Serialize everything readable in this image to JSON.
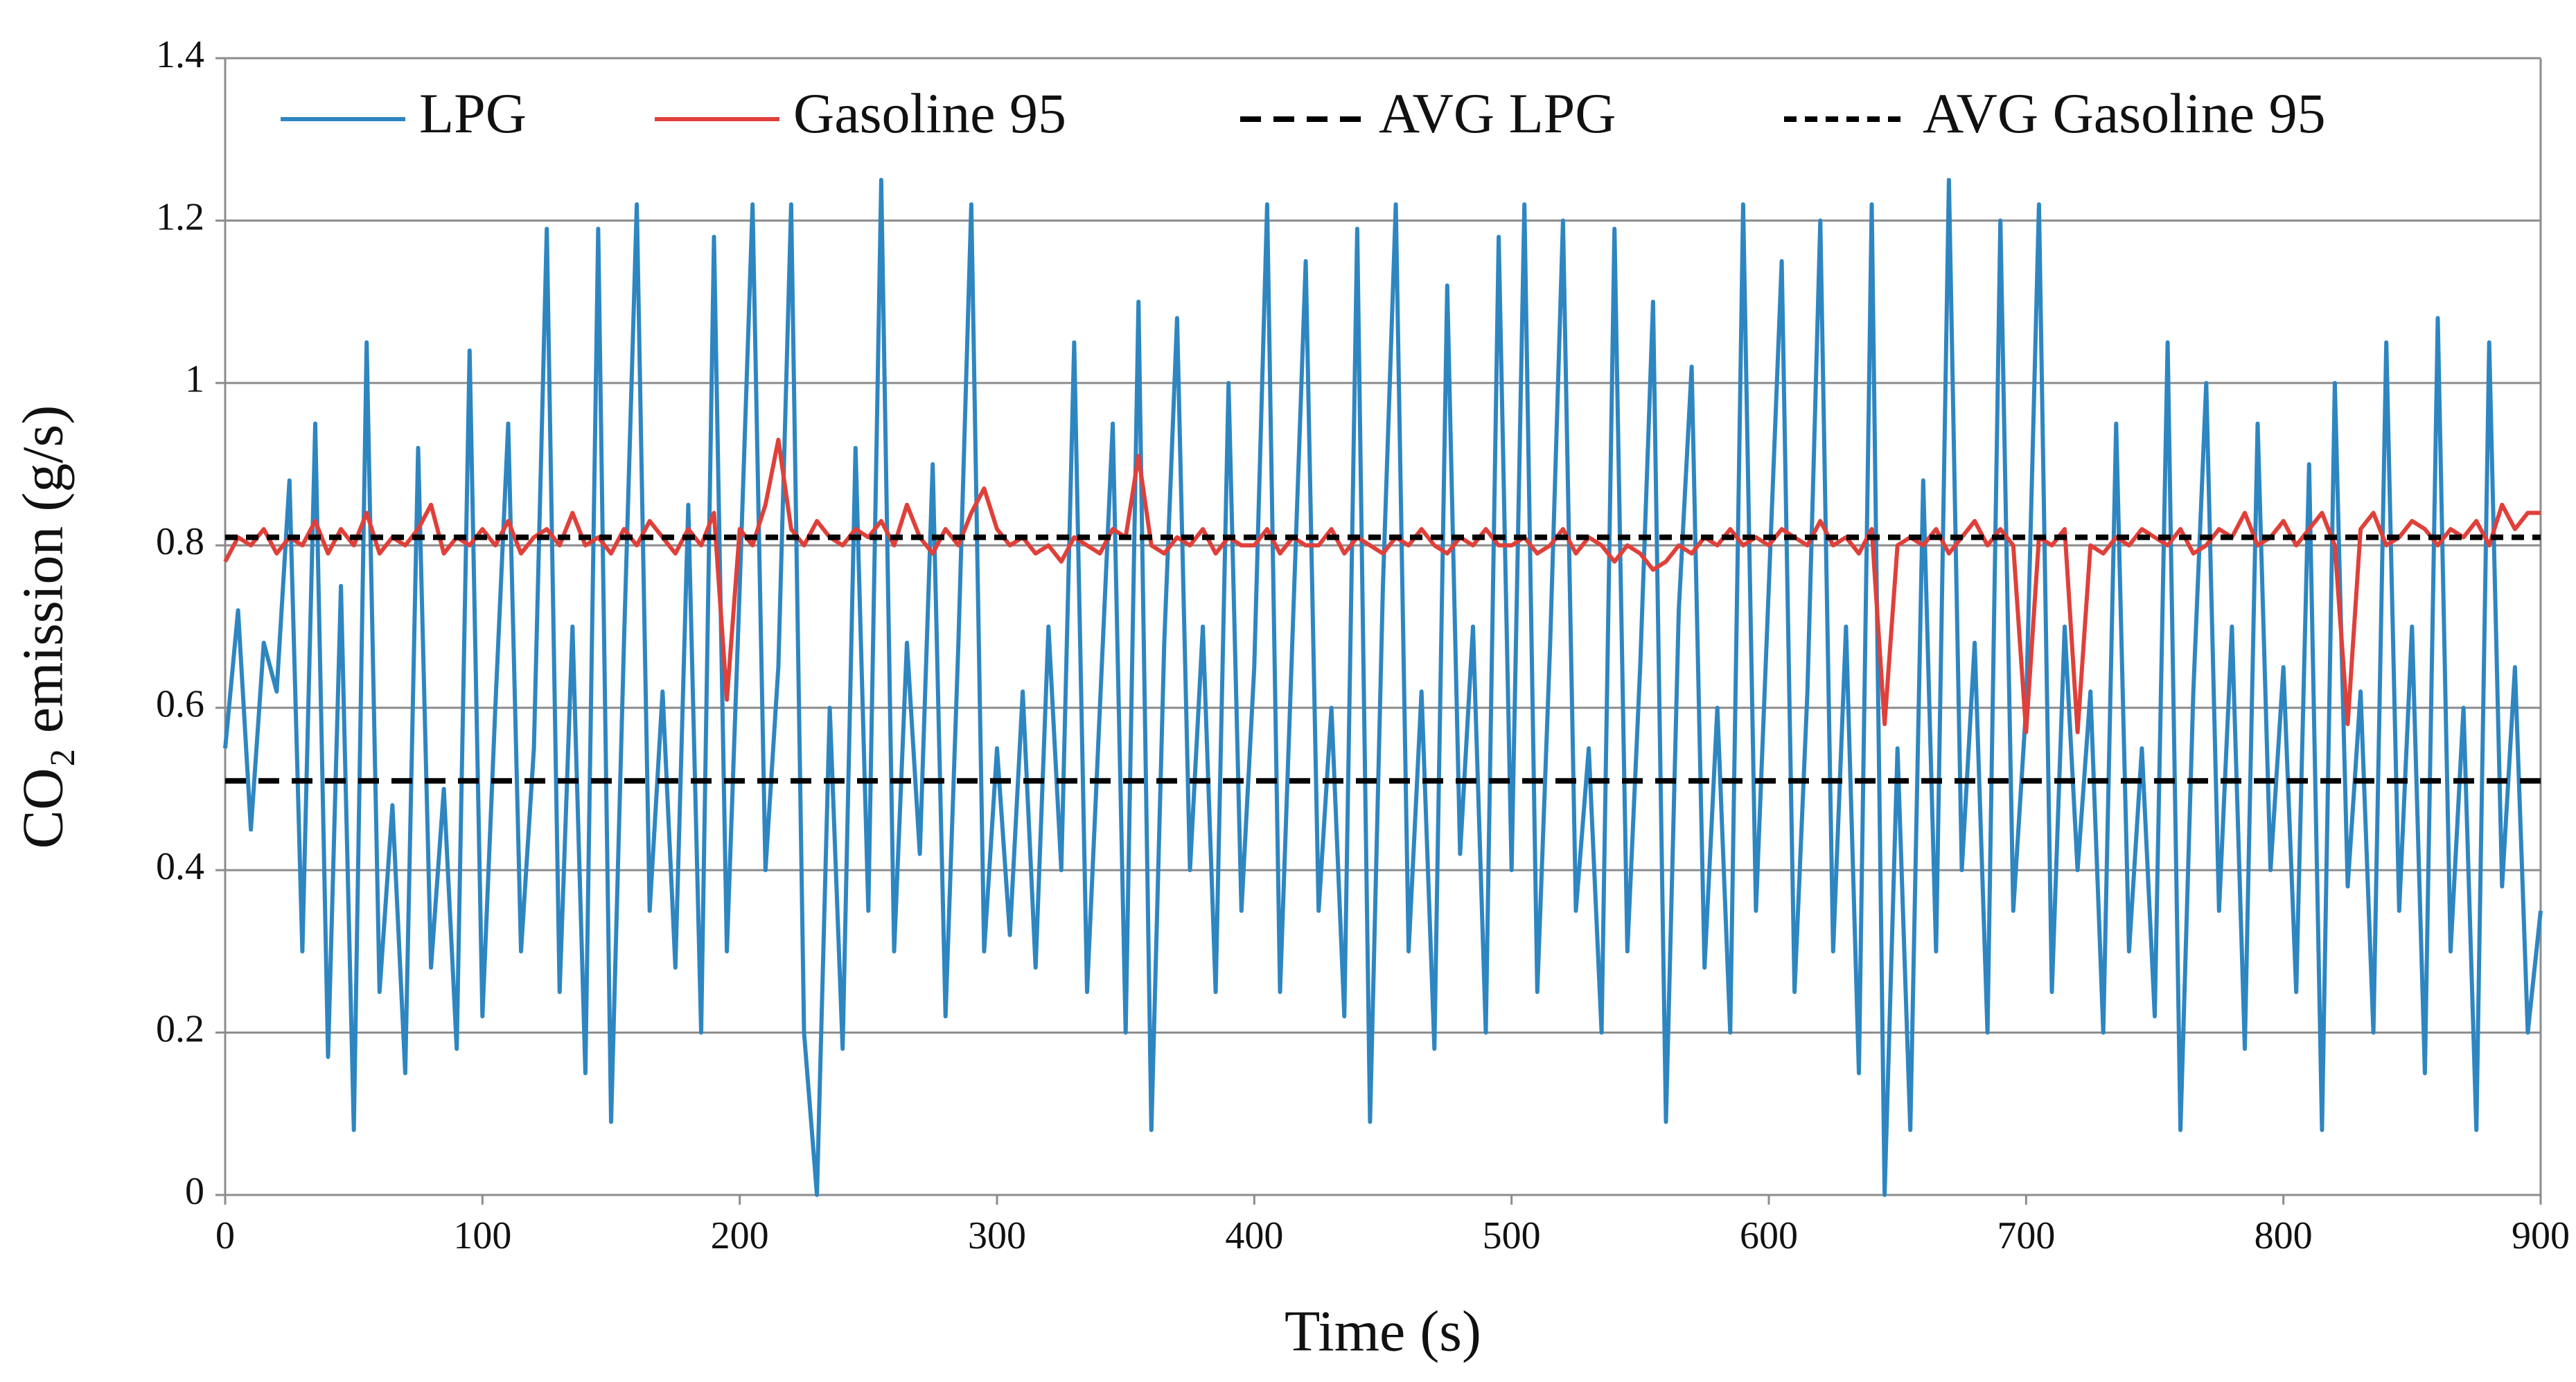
{
  "chart_data": {
    "type": "line",
    "xlabel": "Time (s)",
    "ylabel": "CO₂ emission (g/s)",
    "xlim": [
      0,
      900
    ],
    "xticks": [
      0,
      100,
      200,
      300,
      400,
      500,
      600,
      700,
      800,
      900
    ],
    "ylim": [
      0,
      1.4
    ],
    "yticks": [
      0,
      0.2,
      0.4,
      0.6,
      0.8,
      1,
      1.2,
      1.4
    ],
    "grid": true,
    "legend": "top",
    "x": [
      0,
      5,
      10,
      15,
      20,
      25,
      30,
      35,
      40,
      45,
      50,
      55,
      60,
      65,
      70,
      75,
      80,
      85,
      90,
      95,
      100,
      105,
      110,
      115,
      120,
      125,
      130,
      135,
      140,
      145,
      150,
      155,
      160,
      165,
      170,
      175,
      180,
      185,
      190,
      195,
      200,
      205,
      210,
      215,
      220,
      225,
      230,
      235,
      240,
      245,
      250,
      255,
      260,
      265,
      270,
      275,
      280,
      285,
      290,
      295,
      300,
      305,
      310,
      315,
      320,
      325,
      330,
      335,
      340,
      345,
      350,
      355,
      360,
      365,
      370,
      375,
      380,
      385,
      390,
      395,
      400,
      405,
      410,
      415,
      420,
      425,
      430,
      435,
      440,
      445,
      450,
      455,
      460,
      465,
      470,
      475,
      480,
      485,
      490,
      495,
      500,
      505,
      510,
      515,
      520,
      525,
      530,
      535,
      540,
      545,
      550,
      555,
      560,
      565,
      570,
      575,
      580,
      585,
      590,
      595,
      600,
      605,
      610,
      615,
      620,
      625,
      630,
      635,
      640,
      645,
      650,
      655,
      660,
      665,
      670,
      675,
      680,
      685,
      690,
      695,
      700,
      705,
      710,
      715,
      720,
      725,
      730,
      735,
      740,
      745,
      750,
      755,
      760,
      765,
      770,
      775,
      780,
      785,
      790,
      795,
      800,
      805,
      810,
      815,
      820,
      825,
      830,
      835,
      840,
      845,
      850,
      855,
      860,
      865,
      870,
      875,
      880,
      885,
      890,
      895,
      900
    ],
    "series": [
      {
        "name": "LPG",
        "color": "#2e86c1",
        "linestyle": "solid",
        "values": [
          0.55,
          0.72,
          0.45,
          0.68,
          0.62,
          0.88,
          0.3,
          0.95,
          0.17,
          0.75,
          0.08,
          1.05,
          0.25,
          0.48,
          0.15,
          0.92,
          0.28,
          0.5,
          0.18,
          1.04,
          0.22,
          0.6,
          0.95,
          0.3,
          0.55,
          1.19,
          0.25,
          0.7,
          0.15,
          1.19,
          0.09,
          0.68,
          1.22,
          0.35,
          0.62,
          0.28,
          0.85,
          0.2,
          1.18,
          0.3,
          0.75,
          1.22,
          0.4,
          0.65,
          1.22,
          0.2,
          0.0,
          0.6,
          0.18,
          0.92,
          0.35,
          1.25,
          0.3,
          0.68,
          0.42,
          0.9,
          0.22,
          0.68,
          1.22,
          0.3,
          0.55,
          0.32,
          0.62,
          0.28,
          0.7,
          0.4,
          1.05,
          0.25,
          0.6,
          0.95,
          0.2,
          1.1,
          0.08,
          0.68,
          1.08,
          0.4,
          0.7,
          0.25,
          1.0,
          0.35,
          0.65,
          1.22,
          0.25,
          0.7,
          1.15,
          0.35,
          0.6,
          0.22,
          1.19,
          0.09,
          0.75,
          1.22,
          0.3,
          0.62,
          0.18,
          1.12,
          0.42,
          0.7,
          0.2,
          1.18,
          0.4,
          1.22,
          0.25,
          0.68,
          1.2,
          0.35,
          0.55,
          0.2,
          1.19,
          0.3,
          0.65,
          1.1,
          0.09,
          0.72,
          1.02,
          0.28,
          0.6,
          0.2,
          1.22,
          0.35,
          0.75,
          1.15,
          0.25,
          0.62,
          1.2,
          0.3,
          0.7,
          0.15,
          1.22,
          0.0,
          0.55,
          0.08,
          0.88,
          0.3,
          1.25,
          0.4,
          0.68,
          0.2,
          1.2,
          0.35,
          0.6,
          1.22,
          0.25,
          0.7,
          0.4,
          0.62,
          0.2,
          0.95,
          0.3,
          0.55,
          0.22,
          1.05,
          0.08,
          0.62,
          1.0,
          0.35,
          0.7,
          0.18,
          0.95,
          0.4,
          0.65,
          0.25,
          0.9,
          0.08,
          1.0,
          0.38,
          0.62,
          0.2,
          1.05,
          0.35,
          0.7,
          0.15,
          1.08,
          0.3,
          0.6,
          0.08,
          1.05,
          0.38,
          0.65,
          0.2,
          0.35
        ]
      },
      {
        "name": "Gasoline 95",
        "color": "#e0403a",
        "linestyle": "solid",
        "values": [
          0.78,
          0.81,
          0.8,
          0.82,
          0.79,
          0.81,
          0.8,
          0.83,
          0.79,
          0.82,
          0.8,
          0.84,
          0.79,
          0.81,
          0.8,
          0.82,
          0.85,
          0.79,
          0.81,
          0.8,
          0.82,
          0.8,
          0.83,
          0.79,
          0.81,
          0.82,
          0.8,
          0.84,
          0.8,
          0.81,
          0.79,
          0.82,
          0.8,
          0.83,
          0.81,
          0.79,
          0.82,
          0.8,
          0.84,
          0.61,
          0.82,
          0.8,
          0.85,
          0.93,
          0.82,
          0.8,
          0.83,
          0.81,
          0.8,
          0.82,
          0.81,
          0.83,
          0.8,
          0.85,
          0.81,
          0.79,
          0.82,
          0.8,
          0.84,
          0.87,
          0.82,
          0.8,
          0.81,
          0.79,
          0.8,
          0.78,
          0.81,
          0.8,
          0.79,
          0.82,
          0.81,
          0.91,
          0.8,
          0.79,
          0.81,
          0.8,
          0.82,
          0.79,
          0.81,
          0.8,
          0.8,
          0.82,
          0.79,
          0.81,
          0.8,
          0.8,
          0.82,
          0.79,
          0.81,
          0.8,
          0.79,
          0.81,
          0.8,
          0.82,
          0.8,
          0.79,
          0.81,
          0.8,
          0.82,
          0.8,
          0.8,
          0.81,
          0.79,
          0.8,
          0.82,
          0.79,
          0.81,
          0.8,
          0.78,
          0.8,
          0.79,
          0.77,
          0.78,
          0.8,
          0.79,
          0.81,
          0.8,
          0.82,
          0.8,
          0.81,
          0.8,
          0.82,
          0.81,
          0.8,
          0.83,
          0.8,
          0.81,
          0.79,
          0.82,
          0.58,
          0.8,
          0.81,
          0.8,
          0.82,
          0.79,
          0.81,
          0.83,
          0.8,
          0.82,
          0.8,
          0.57,
          0.81,
          0.8,
          0.82,
          0.57,
          0.8,
          0.79,
          0.81,
          0.8,
          0.82,
          0.81,
          0.8,
          0.82,
          0.79,
          0.8,
          0.82,
          0.81,
          0.84,
          0.8,
          0.81,
          0.83,
          0.8,
          0.82,
          0.84,
          0.8,
          0.58,
          0.82,
          0.84,
          0.8,
          0.81,
          0.83,
          0.82,
          0.8,
          0.82,
          0.81,
          0.83,
          0.8,
          0.85,
          0.82,
          0.84,
          0.84
        ]
      },
      {
        "name": "AVG LPG",
        "color": "#000000",
        "linestyle": "dashed",
        "x": [
          0,
          900
        ],
        "values": [
          0.51,
          0.51
        ]
      },
      {
        "name": "AVG Gasoline 95",
        "color": "#000000",
        "linestyle": "dotted",
        "x": [
          0,
          900
        ],
        "values": [
          0.81,
          0.81
        ]
      }
    ]
  }
}
